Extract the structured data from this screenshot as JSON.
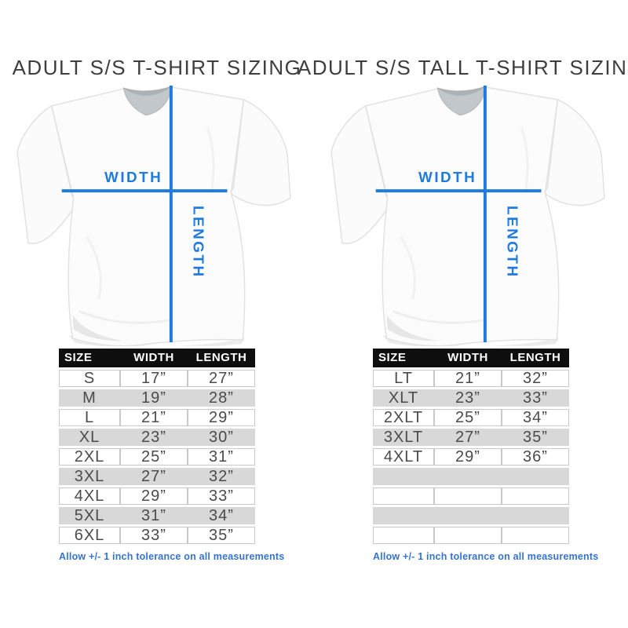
{
  "colors": {
    "accent_blue": "#1f7be0",
    "footnote_blue": "#3674cb",
    "header_bg": "#0e0e0e",
    "header_text": "#ffffff",
    "row_alt_gray": "#d8d8d8",
    "grid_line": "#c9c9c9",
    "title_text": "#3e3e3e",
    "data_text": "#4b4b4b"
  },
  "charts": [
    {
      "title": "ADULT S/S T-SHIRT SIZING",
      "shirt": {
        "width_label": "WIDTH",
        "length_label": "LENGTH"
      },
      "table": {
        "headers": [
          "SIZE",
          "WIDTH",
          "LENGTH"
        ],
        "rows": [
          [
            "S",
            "17”",
            "27”"
          ],
          [
            "M",
            "19”",
            "28”"
          ],
          [
            "L",
            "21”",
            "29”"
          ],
          [
            "XL",
            "23”",
            "30”"
          ],
          [
            "2XL",
            "25”",
            "31”"
          ],
          [
            "3XL",
            "27”",
            "32”"
          ],
          [
            "4XL",
            "29”",
            "33”"
          ],
          [
            "5XL",
            "31”",
            "34”"
          ],
          [
            "6XL",
            "33”",
            "35”"
          ]
        ]
      },
      "footnote": "Allow +/- 1 inch tolerance on all measurements"
    },
    {
      "title": "ADULT S/S TALL T-SHIRT SIZING",
      "shirt": {
        "width_label": "WIDTH",
        "length_label": "LENGTH"
      },
      "table": {
        "headers": [
          "SIZE",
          "WIDTH",
          "LENGTH"
        ],
        "rows": [
          [
            "LT",
            "21”",
            "32”"
          ],
          [
            "XLT",
            "23”",
            "33”"
          ],
          [
            "2XLT",
            "25”",
            "34”"
          ],
          [
            "3XLT",
            "27”",
            "35”"
          ],
          [
            "4XLT",
            "29”",
            "36”"
          ],
          [
            "",
            "",
            ""
          ],
          [
            "",
            "",
            ""
          ],
          [
            "",
            "",
            ""
          ],
          [
            "",
            "",
            ""
          ]
        ]
      },
      "footnote": "Allow +/- 1 inch tolerance on all measurements"
    }
  ]
}
